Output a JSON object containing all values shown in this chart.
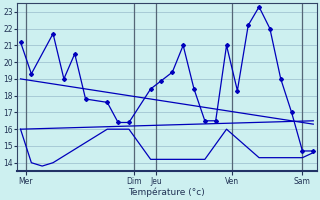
{
  "xlabel": "Température (°c)",
  "bg_color": "#cdf0f0",
  "line_color": "#0000bb",
  "grid_color": "#99bbcc",
  "separator_color": "#556677",
  "ylim": [
    13.5,
    23.5
  ],
  "yticks": [
    14,
    15,
    16,
    17,
    18,
    19,
    20,
    21,
    22,
    23
  ],
  "xlim": [
    -0.3,
    27.3
  ],
  "day_labels": [
    "Mer",
    "Dim",
    "Jeu",
    "Ven",
    "Sam"
  ],
  "day_positions": [
    0.5,
    10.5,
    12.5,
    19.5,
    26.0
  ],
  "separator_positions": [
    0.5,
    10.5,
    12.5,
    19.5,
    26.0
  ],
  "series_main": {
    "x": [
      0,
      1,
      3,
      4,
      5,
      6,
      8,
      9,
      10,
      12,
      13,
      14,
      15,
      16,
      17,
      18,
      19,
      20,
      21,
      22,
      23,
      24,
      25,
      26,
      27
    ],
    "y": [
      21.2,
      19.3,
      21.7,
      19.0,
      20.5,
      17.8,
      17.6,
      16.4,
      16.4,
      18.4,
      18.9,
      19.4,
      21.0,
      18.4,
      16.5,
      16.5,
      21.0,
      18.3,
      22.2,
      23.3,
      22.0,
      19.0,
      17.0,
      14.7,
      14.7
    ]
  },
  "series_avg": {
    "x": [
      0,
      27
    ],
    "y": [
      19.0,
      16.3
    ]
  },
  "series_mid": {
    "x": [
      0,
      27
    ],
    "y": [
      16.0,
      16.5
    ]
  },
  "series_min": {
    "x": [
      0,
      1,
      2,
      3,
      8,
      10,
      12,
      17,
      19,
      22,
      23,
      26,
      27
    ],
    "y": [
      16.0,
      14.0,
      13.8,
      14.0,
      16.0,
      16.0,
      14.2,
      14.2,
      16.0,
      14.3,
      14.3,
      14.3,
      14.6
    ]
  }
}
